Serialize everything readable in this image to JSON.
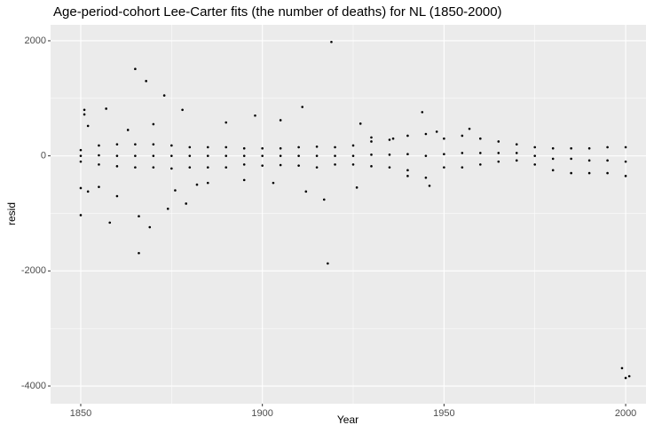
{
  "chart_data": {
    "type": "scatter",
    "title": "Age-period-cohort Lee-Carter fits (the number of deaths) for NL (1850-2000)",
    "x_label": "Year",
    "y_label": "resid",
    "xlim": [
      1841.7,
      2005.6
    ],
    "ylim": [
      -4308,
      2277
    ],
    "xticks": [
      1850,
      1900,
      1950,
      2000
    ],
    "yticks": [
      -4000,
      -2000,
      0,
      2000
    ],
    "grid": true,
    "color": "#000000",
    "x": [
      1850,
      1851,
      1851,
      1852,
      1857,
      1858,
      1865,
      1866,
      1866,
      1868,
      1869,
      1873,
      1874,
      1879,
      1878,
      1919,
      1918,
      1944,
      1946,
      1999,
      2000,
      2001,
      1850,
      1852,
      1855,
      1860,
      1863,
      1870,
      1876,
      1882,
      1890,
      1898,
      1905,
      1911,
      1912,
      1917,
      1926,
      1927,
      1940,
      1948,
      1957,
      1885,
      1895,
      1903,
      1930,
      1936,
      1850,
      1850,
      1850,
      1855,
      1855,
      1855,
      1860,
      1860,
      1860,
      1865,
      1865,
      1865,
      1870,
      1870,
      1870,
      1875,
      1875,
      1875,
      1880,
      1880,
      1880,
      1885,
      1885,
      1885,
      1890,
      1890,
      1890,
      1895,
      1895,
      1895,
      1900,
      1900,
      1900,
      1905,
      1905,
      1905,
      1910,
      1910,
      1910,
      1915,
      1915,
      1915,
      1920,
      1920,
      1920,
      1925,
      1925,
      1925,
      1930,
      1930,
      1930,
      1935,
      1935,
      1935,
      1940,
      1940,
      1940,
      1945,
      1945,
      1945,
      1950,
      1950,
      1950,
      1955,
      1955,
      1955,
      1960,
      1960,
      1960,
      1965,
      1965,
      1965,
      1970,
      1970,
      1970,
      1975,
      1975,
      1975,
      1980,
      1980,
      1980,
      1985,
      1985,
      1985,
      1990,
      1990,
      1990,
      1995,
      1995,
      1995,
      2000,
      2000,
      2000
    ],
    "values": [
      -1030,
      800,
      720,
      520,
      820,
      -1160,
      1510,
      -1050,
      -1690,
      1300,
      -1240,
      1050,
      -920,
      -830,
      800,
      1980,
      -1870,
      760,
      -520,
      -3690,
      -3860,
      -3830,
      -560,
      -620,
      -540,
      -700,
      450,
      550,
      -600,
      -500,
      580,
      700,
      620,
      850,
      -620,
      -760,
      -550,
      560,
      -350,
      420,
      470,
      -470,
      -420,
      -470,
      320,
      300,
      100,
      0,
      -100,
      180,
      10,
      -150,
      200,
      0,
      -180,
      200,
      0,
      -200,
      200,
      0,
      -200,
      180,
      0,
      -220,
      150,
      0,
      -200,
      150,
      0,
      -200,
      150,
      0,
      -200,
      130,
      0,
      -150,
      130,
      0,
      -170,
      130,
      0,
      -160,
      150,
      0,
      -170,
      160,
      0,
      -200,
      150,
      0,
      -150,
      180,
      0,
      -150,
      250,
      20,
      -180,
      280,
      20,
      -200,
      350,
      30,
      -250,
      380,
      0,
      -380,
      300,
      30,
      -200,
      350,
      50,
      -200,
      300,
      50,
      -150,
      250,
      50,
      -100,
      200,
      50,
      -80,
      150,
      0,
      -150,
      130,
      -50,
      -250,
      130,
      -50,
      -300,
      130,
      -80,
      -300,
      150,
      -80,
      -300,
      150,
      -100,
      -350
    ]
  }
}
